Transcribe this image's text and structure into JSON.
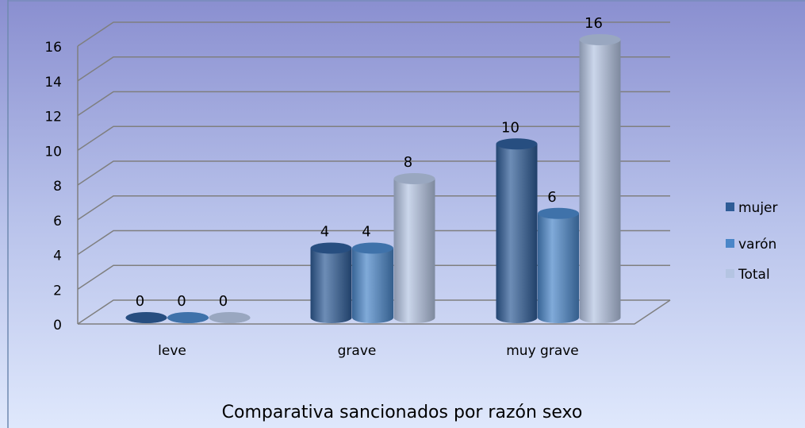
{
  "chart_data": {
    "type": "bar",
    "title": "Comparativa sancionados por razón sexo",
    "categories": [
      "leve",
      "grave",
      "muy grave"
    ],
    "series": [
      {
        "name": "mujer",
        "color": "#2e5c96",
        "values": [
          0,
          4,
          10
        ]
      },
      {
        "name": "varón",
        "color": "#4a86c8",
        "values": [
          0,
          4,
          6
        ]
      },
      {
        "name": "Total",
        "color": "#b4c4e2",
        "values": [
          0,
          8,
          16
        ]
      }
    ],
    "ylim": [
      0,
      16
    ],
    "yticks": [
      0,
      2,
      4,
      6,
      8,
      10,
      12,
      14,
      16
    ],
    "grid": true,
    "legend": "right"
  }
}
